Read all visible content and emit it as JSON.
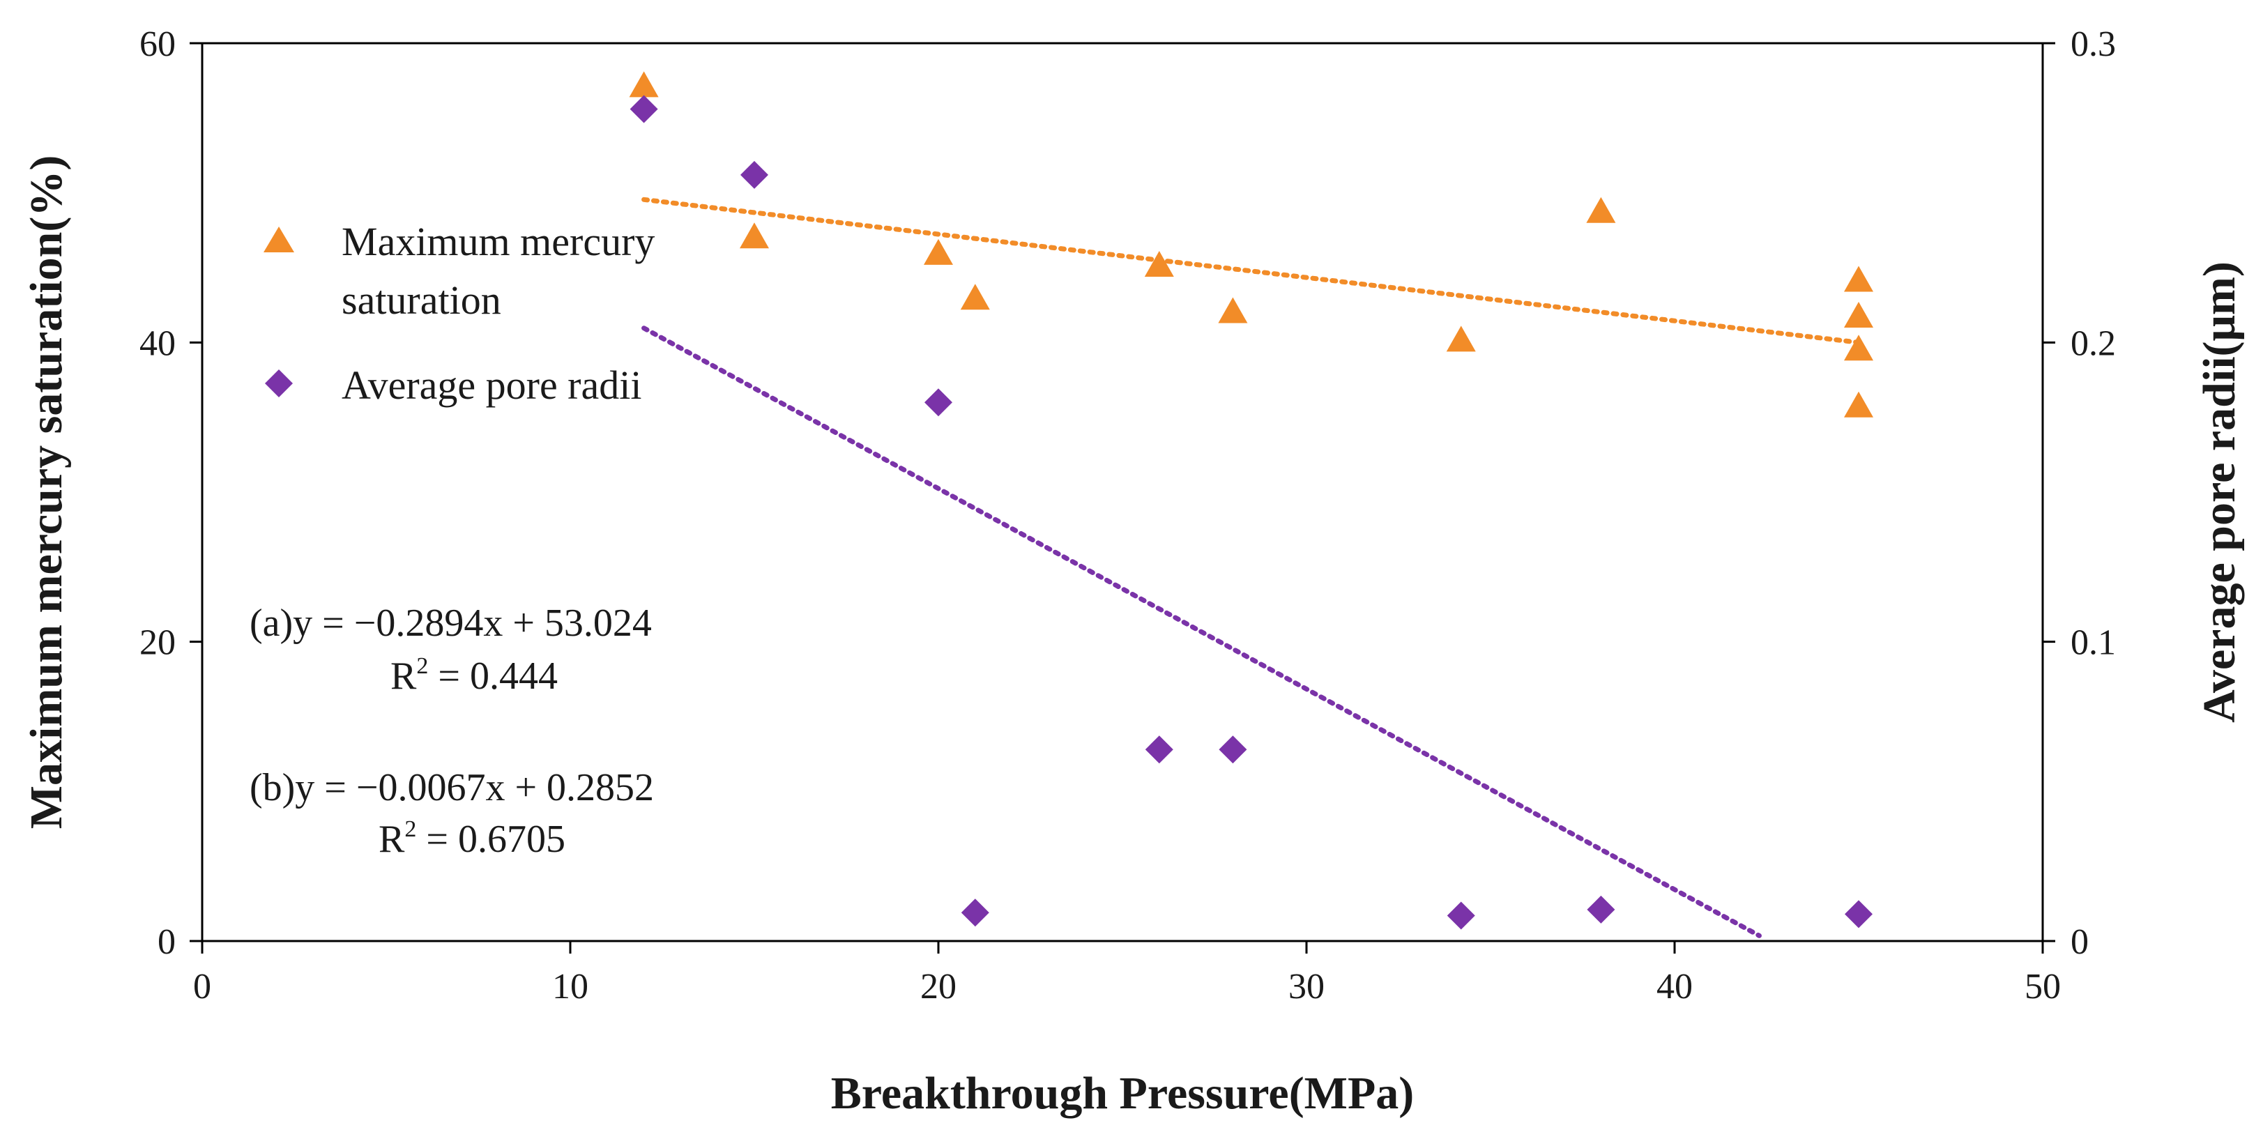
{
  "chart_data": {
    "type": "scatter",
    "title": "",
    "xlabel": "Breakthrough Pressure(MPa)",
    "ylabel": "Maximum mercury saturation(%)",
    "y2label": "Average pore radii(μm)",
    "xlim": [
      0,
      50
    ],
    "ylim": [
      0,
      60
    ],
    "y2lim": [
      0,
      0.3
    ],
    "xticks": [
      "0",
      "10",
      "20",
      "30",
      "40",
      "50"
    ],
    "yticks": [
      "0",
      "20",
      "40",
      "60"
    ],
    "y2ticks": [
      "0",
      "0.1",
      "0.2",
      "0.3"
    ],
    "grid": false,
    "legend_position": "left",
    "series": [
      {
        "name": "Maximum mercury saturation",
        "marker": "triangle",
        "color": "#f28c28",
        "axis": "left",
        "x": [
          12,
          15,
          20,
          21,
          26,
          28,
          34.2,
          38,
          45,
          45,
          45,
          45
        ],
        "y": [
          57,
          46.9,
          45.8,
          42.8,
          45,
          41.9,
          40,
          48.6,
          44,
          41.6,
          39.4,
          35.6
        ],
        "trendline": {
          "slope": -0.2894,
          "intercept": 53.024,
          "x_range": [
            12,
            45
          ]
        }
      },
      {
        "name": "Average pore radii",
        "marker": "diamond",
        "color": "#7a33a8",
        "axis": "right",
        "x": [
          12,
          15,
          20,
          21,
          26,
          28,
          34.2,
          38,
          45
        ],
        "y": [
          0.278,
          0.256,
          0.18,
          0.0095,
          0.064,
          0.064,
          0.0085,
          0.0105,
          0.009
        ],
        "trendline": {
          "slope": -0.0067,
          "intercept": 0.2852,
          "x_range": [
            12,
            42.3
          ]
        }
      }
    ],
    "legend": {
      "items": [
        {
          "label_lines": [
            "Maximum mercury",
            "saturation"
          ]
        },
        {
          "label_lines": [
            "Average pore radii"
          ]
        }
      ]
    },
    "annotations": {
      "a_equation": "(a)y = −0.2894x + 53.024",
      "a_r2_prefix": "R",
      "a_r2_sup": "2",
      "a_r2_value": " = 0.444",
      "b_equation": "(b)y = −0.0067x + 0.2852",
      "b_r2_prefix": "R",
      "b_r2_sup": "2",
      "b_r2_value": " = 0.6705"
    }
  }
}
